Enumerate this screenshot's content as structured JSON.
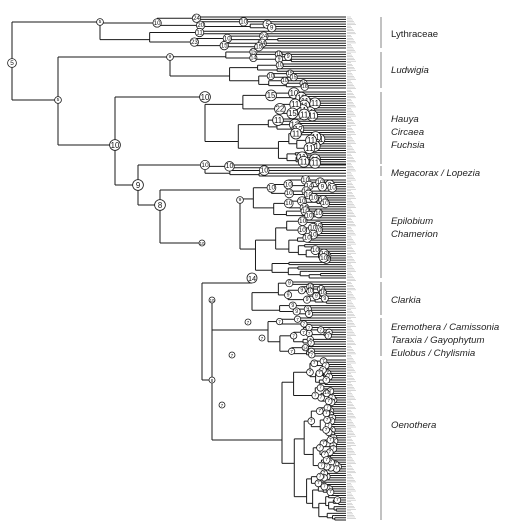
{
  "clades": [
    {
      "id": "lythraceae",
      "label": "Lythraceae",
      "italic": false
    },
    {
      "id": "ludwigia",
      "label": "Ludwigia",
      "italic": true
    },
    {
      "id": "hauya",
      "label": "Hauya",
      "italic": true
    },
    {
      "id": "circaea",
      "label": "Circaea",
      "italic": true
    },
    {
      "id": "fuchsia",
      "label": "Fuchsia",
      "italic": true
    },
    {
      "id": "megacorax",
      "label": "Megacorax / Lopezia",
      "italic": true
    },
    {
      "id": "epilobium",
      "label": "Epilobium",
      "italic": true
    },
    {
      "id": "chamerion",
      "label": "Chamerion",
      "italic": true
    },
    {
      "id": "clarkia",
      "label": "Clarkia",
      "italic": true
    },
    {
      "id": "eremothera",
      "label": "Eremothera / Camissonia",
      "italic": true
    },
    {
      "id": "taraxia",
      "label": "Taraxia / Gayophytum",
      "italic": true
    },
    {
      "id": "eulobus",
      "label": "Eulobus / Chylismia",
      "italic": true
    },
    {
      "id": "oenothera",
      "label": "Oenothera",
      "italic": true
    }
  ],
  "node_numbers": {
    "root": "5",
    "spine": [
      "5",
      "10",
      "10",
      "10",
      "9",
      "8",
      "8",
      "7",
      "7",
      "7",
      "7"
    ],
    "lythraceae": [
      "5",
      "9",
      "10",
      "24",
      "20",
      "24",
      "24",
      "15",
      "10",
      "15",
      "11",
      "23",
      "10",
      "9"
    ],
    "ludwigia": [
      "9",
      "10",
      "9",
      "15",
      "14",
      "10",
      "15",
      "15",
      "15",
      "16",
      "10",
      "10"
    ],
    "hauya_circaea_fuchsia": [
      "10",
      "11",
      "11",
      "11",
      "11",
      "11",
      "11",
      "11",
      "11",
      "11",
      "15",
      "15",
      "22",
      "13",
      "12",
      "11",
      "11",
      "11",
      "11",
      "11",
      "11",
      "11",
      "11",
      "11",
      "11",
      "11"
    ],
    "megacorax": [
      "10",
      "10",
      "10",
      "10"
    ],
    "epilobium": [
      "9",
      "10",
      "10",
      "9",
      "10",
      "14",
      "10",
      "10",
      "10",
      "10",
      "10",
      "10",
      "10",
      "10",
      "10",
      "10",
      "10",
      "10",
      "10",
      "10",
      "10",
      "10",
      "10",
      "10",
      "10",
      "10",
      "10",
      "10",
      "10",
      "10",
      "10",
      "10"
    ],
    "clarkia": [
      "14",
      "16",
      "10",
      "10",
      "9",
      "9",
      "9",
      "9",
      "9",
      "9",
      "9",
      "9",
      "9",
      "9"
    ],
    "camissonia_group": [
      "7",
      "7",
      "7",
      "7",
      "7",
      "7",
      "7",
      "7",
      "7",
      "7",
      "7",
      "7",
      "14",
      "7",
      "7",
      "7",
      "7",
      "7",
      "7",
      "7"
    ],
    "oenothera": [
      "7",
      "7",
      "7",
      "7",
      "7",
      "7",
      "7",
      "7",
      "7",
      "7",
      "7",
      "7",
      "14",
      "7",
      "7",
      "7",
      "7",
      "7",
      "7",
      "7",
      "7",
      "7",
      "7",
      "7",
      "7",
      "7",
      "7",
      "7",
      "7",
      "7",
      "7",
      "7",
      "7",
      "7",
      "7",
      "7",
      "7",
      "7",
      "7",
      "7",
      "7",
      "7",
      "7",
      "7",
      "7",
      "7",
      "7",
      "7",
      "7",
      "7",
      "7",
      "7",
      "7",
      "7",
      "7",
      "7",
      "7",
      "7"
    ]
  },
  "tip_count": 330,
  "colors": {
    "edge": "#1a1a1a",
    "clade_bar": "#9a9a9a",
    "tip_label": "#bdbdbd",
    "node_fill": "#ffffff"
  }
}
